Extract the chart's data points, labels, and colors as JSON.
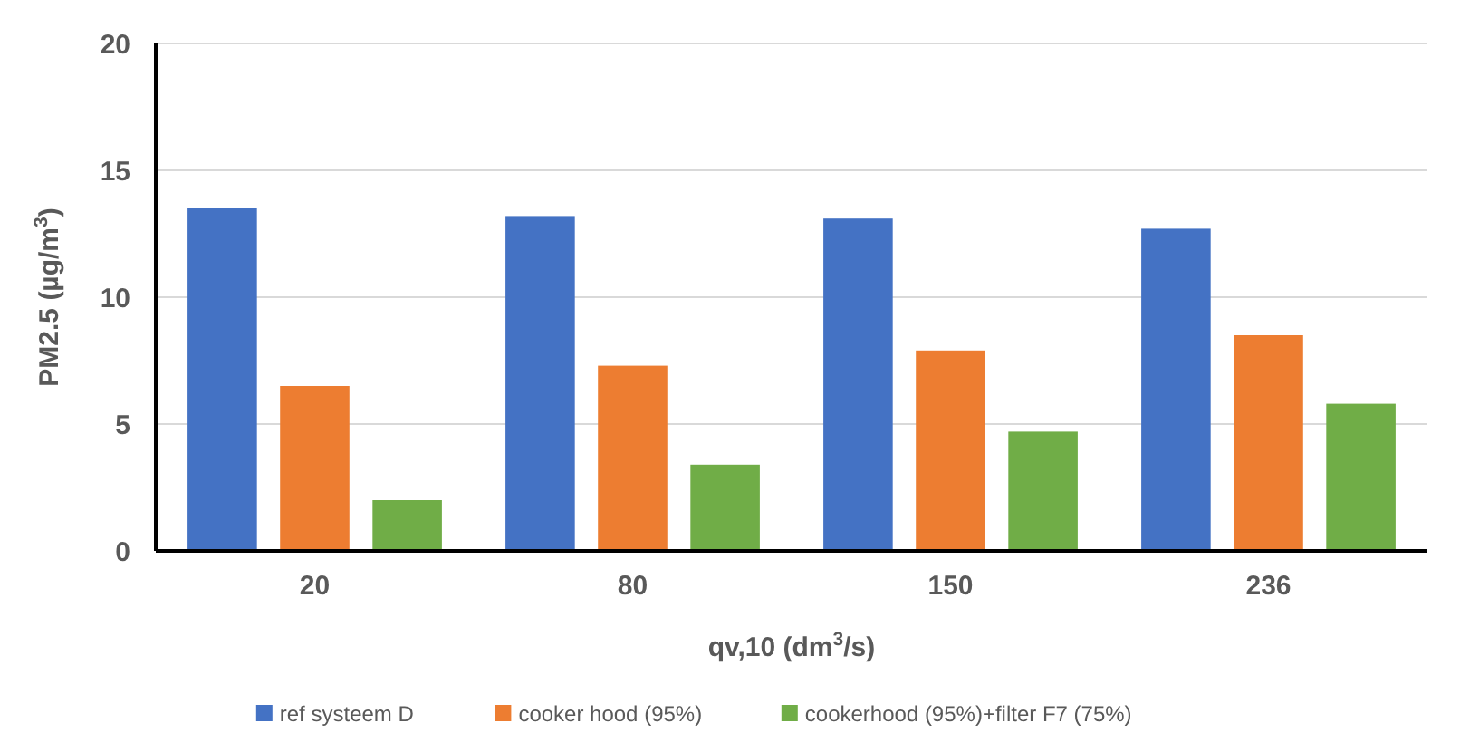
{
  "chart_data": {
    "type": "bar",
    "xlabel": "qv,10 (dm$^{3}$/s)",
    "ylabel": "PM2.5 (µg/m$^{3}$)",
    "categories": [
      "20",
      "80",
      "150",
      "236"
    ],
    "series": [
      {
        "name": "ref systeem D",
        "color": "#4472c4",
        "values": [
          13.5,
          13.2,
          13.1,
          12.7
        ]
      },
      {
        "name": "cooker hood (95%)",
        "color": "#ed7d31",
        "values": [
          6.5,
          7.3,
          7.9,
          8.5
        ]
      },
      {
        "name": "cookerhood (95%)+filter F7 (75%)",
        "color": "#70ad47",
        "values": [
          2.0,
          3.4,
          4.7,
          5.8
        ]
      }
    ],
    "ylim": [
      0,
      20
    ],
    "yticks": [
      0,
      5,
      10,
      15,
      20
    ],
    "grid": "y",
    "legend": "bottom"
  }
}
